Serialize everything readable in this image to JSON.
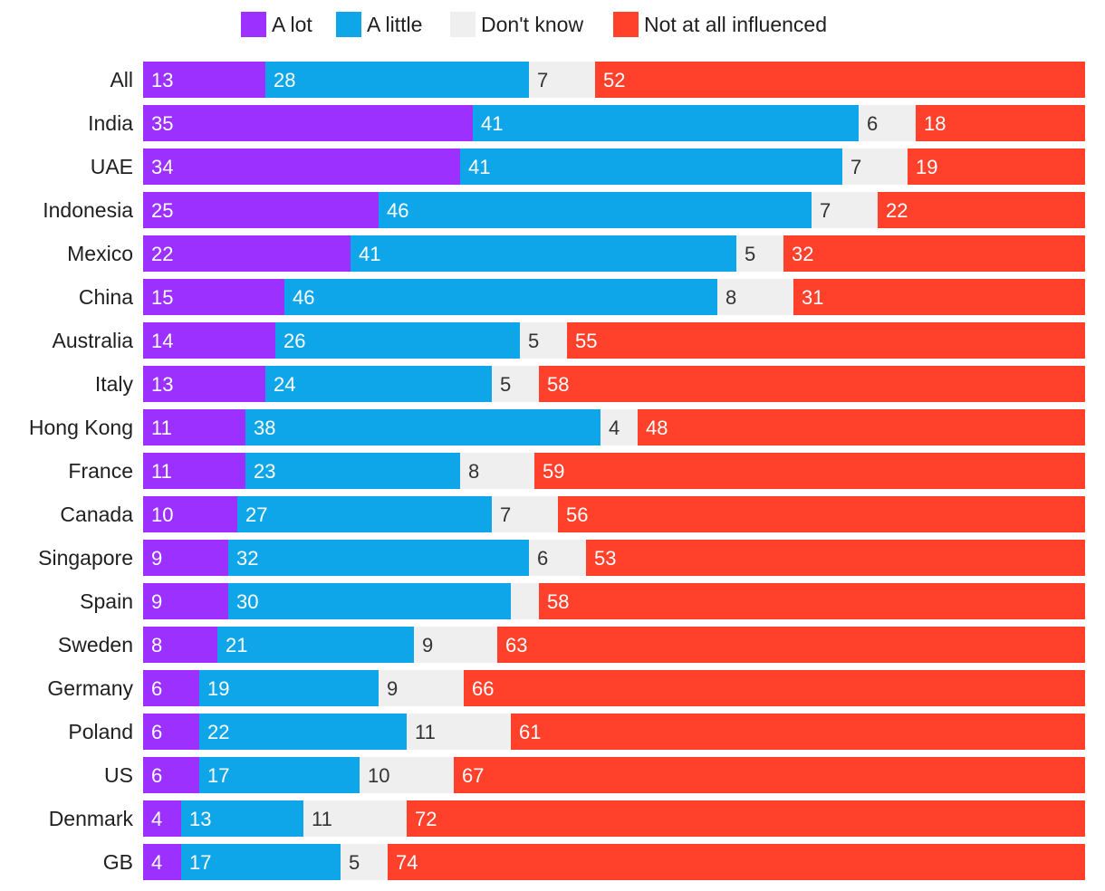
{
  "chart_data": {
    "type": "bar",
    "orientation": "horizontal",
    "stacked": true,
    "title": "",
    "xlabel": "",
    "ylabel": "",
    "xlim": [
      0,
      100
    ],
    "grid": false,
    "legend_position": "top",
    "categories": [
      "All",
      "India",
      "UAE",
      "Indonesia",
      "Mexico",
      "China",
      "Australia",
      "Italy",
      "Hong Kong",
      "France",
      "Canada",
      "Singapore",
      "Spain",
      "Sweden",
      "Germany",
      "Poland",
      "US",
      "Denmark",
      "GB"
    ],
    "series": [
      {
        "name": "A lot",
        "color": "#9b30ff",
        "label_style": "light",
        "values": [
          13,
          35,
          34,
          25,
          22,
          15,
          14,
          13,
          11,
          11,
          10,
          9,
          9,
          8,
          6,
          6,
          6,
          4,
          4
        ],
        "labels": [
          "13",
          "35",
          "34",
          "25",
          "22",
          "15",
          "14",
          "13",
          "11",
          "11",
          "10",
          "9",
          "9",
          "8",
          "6",
          "6",
          "6",
          "4",
          "4"
        ]
      },
      {
        "name": "A little",
        "color": "#0ea5e9",
        "label_style": "light",
        "values": [
          28,
          41,
          41,
          46,
          41,
          46,
          26,
          24,
          38,
          23,
          27,
          32,
          30,
          21,
          19,
          22,
          17,
          13,
          17
        ],
        "labels": [
          "28",
          "41",
          "41",
          "46",
          "41",
          "46",
          "26",
          "24",
          "38",
          "23",
          "27",
          "32",
          "30",
          "21",
          "19",
          "22",
          "17",
          "13",
          "17"
        ]
      },
      {
        "name": "Don't know",
        "color": "#efefef",
        "label_style": "dark",
        "values": [
          7,
          6,
          7,
          7,
          5,
          8,
          5,
          5,
          4,
          8,
          7,
          6,
          3,
          9,
          9,
          11,
          10,
          11,
          5
        ],
        "labels": [
          "7",
          "6",
          "7",
          "7",
          "5",
          "8",
          "5",
          "5",
          "4",
          "8",
          "7",
          "6",
          "",
          "9",
          "9",
          "11",
          "10",
          "11",
          "5"
        ]
      },
      {
        "name": "Not at all influenced",
        "color": "#ff402b",
        "label_style": "light",
        "values": [
          52,
          18,
          19,
          22,
          32,
          31,
          55,
          58,
          48,
          59,
          56,
          53,
          58,
          63,
          66,
          61,
          67,
          72,
          74
        ],
        "labels": [
          "52",
          "18",
          "19",
          "22",
          "32",
          "31",
          "55",
          "58",
          "48",
          "59",
          "56",
          "53",
          "58",
          "63",
          "66",
          "61",
          "67",
          "72",
          "74"
        ]
      }
    ]
  }
}
